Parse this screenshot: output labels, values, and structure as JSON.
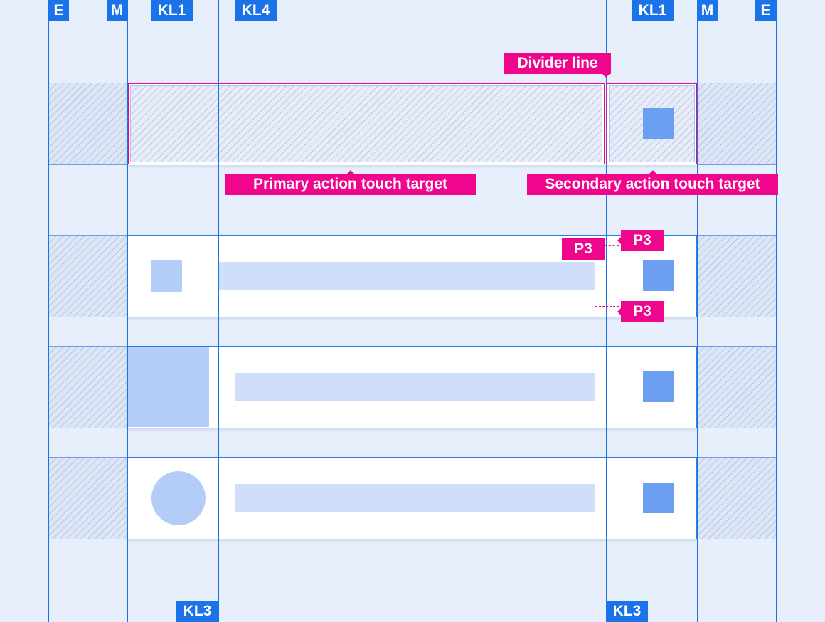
{
  "keylines_top": [
    "E",
    "M",
    "KL1",
    "KL4",
    "KL1",
    "M",
    "E"
  ],
  "keylines_bottom": [
    "KL3",
    "KL3"
  ],
  "annotations": {
    "divider_line": "Divider line",
    "primary_target": "Primary action touch target",
    "secondary_target": "Secondary action touch target",
    "padding_top": "P3",
    "padding_left": "P3",
    "padding_bottom": "P3"
  },
  "colors": {
    "keyline": "#1a73e8",
    "annotation": "#f0068d",
    "action": "#6a9ff2",
    "background": "#e8effc"
  }
}
